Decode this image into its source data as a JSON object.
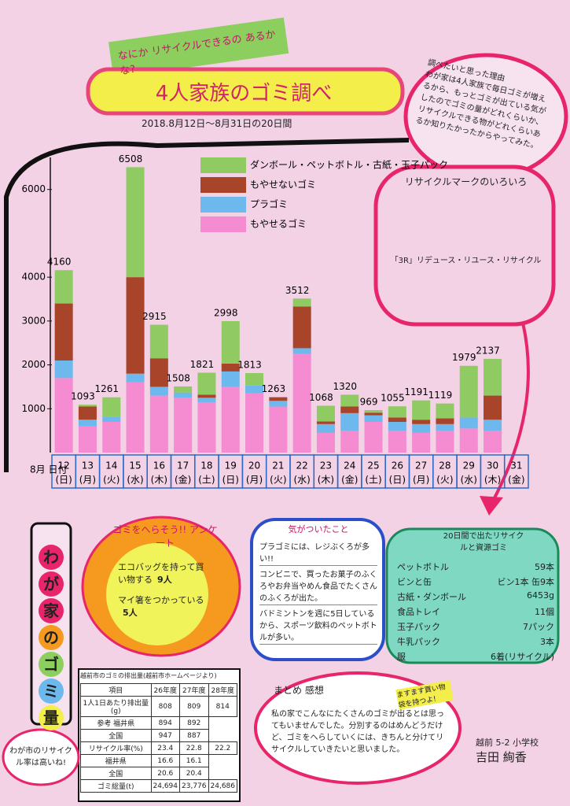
{
  "header": {
    "subtitle": "なにか リサイクルできるの あるかな?",
    "title": "4人家族のゴミ調べ",
    "period": "2018.8月12日〜8月31日の20日間"
  },
  "reason": {
    "heading": "調べたいと思った理由",
    "text": "わが家は4人家族で毎日ゴミが増えるから、もっとゴミが出ている気がしたのでゴミの量がどれくらいか、リサイクルできる物がどれくらいあるか知りたかったからやってみた。"
  },
  "chart_data": {
    "type": "stacked_bar",
    "corner_label": "8月 日付",
    "categories": [
      "12",
      "13",
      "14",
      "15",
      "16",
      "17",
      "18",
      "19",
      "20",
      "21",
      "22",
      "23",
      "24",
      "25",
      "26",
      "27",
      "28",
      "29",
      "30",
      "31"
    ],
    "weekdays": [
      "(日)",
      "(月)",
      "(火)",
      "(水)",
      "(木)",
      "(金)",
      "(土)",
      "(日)",
      "(月)",
      "(火)",
      "(水)",
      "(木)",
      "(金)",
      "(土)",
      "(日)",
      "(月)",
      "(火)",
      "(水)",
      "(木)",
      "(金)"
    ],
    "series": [
      {
        "name": "もやせるゴミ",
        "color": "#f58bd0",
        "values": [
          1700,
          600,
          700,
          1600,
          1300,
          1250,
          1150,
          1500,
          1350,
          1050,
          2250,
          450,
          500,
          700,
          500,
          450,
          500,
          550,
          500,
          null
        ]
      },
      {
        "name": "プラゴミ",
        "color": "#6db8ec",
        "values": [
          400,
          150,
          120,
          200,
          200,
          120,
          100,
          350,
          180,
          130,
          130,
          200,
          400,
          150,
          200,
          200,
          150,
          250,
          250,
          null
        ]
      },
      {
        "name": "もやせないゴミ",
        "color": "#a8442a",
        "values": [
          1300,
          300,
          0,
          2200,
          650,
          0,
          70,
          180,
          0,
          83,
          950,
          60,
          150,
          60,
          100,
          100,
          130,
          0,
          550,
          null
        ]
      },
      {
        "name": "ダンボール・ペットボトル・古紙・玉子パック",
        "color": "#8fcb62",
        "values": [
          760,
          43,
          441,
          2508,
          765,
          138,
          501,
          968,
          283,
          0,
          182,
          358,
          270,
          59,
          255,
          441,
          339,
          1179,
          837,
          null
        ]
      }
    ],
    "totals": [
      4160,
      1093,
      1261,
      6508,
      2915,
      1508,
      1821,
      2998,
      1813,
      1263,
      3512,
      1068,
      1320,
      969,
      1055,
      1191,
      1119,
      1979,
      2137,
      null
    ],
    "ylim": [
      0,
      7000
    ],
    "yticks": [
      1000,
      2000,
      3000,
      4000,
      6000
    ]
  },
  "marks": {
    "heading": "リサイクルマークのいろいろ",
    "caption": "「3R」リデュース・リユース・リサイクル"
  },
  "side_title": [
    "わ",
    "が",
    "家",
    "の",
    "ゴ",
    "ミ",
    "量"
  ],
  "survey": {
    "heading": "ゴミをへらそう!! アンケート",
    "items": [
      {
        "text": "エコバッグを持って買い物する",
        "count": "9人"
      },
      {
        "text": "マイ箸をつかっている",
        "count": "5人"
      }
    ]
  },
  "notice": {
    "heading": "気がついたこと",
    "lines": [
      "プラゴミには、レジぶくろが多い!!",
      "コンビニで、買ったお菓子のふくろやお弁当やめん食品でたくさんのふくろが出た。",
      "バドミントンを週に5日しているから、スポーツ飲料のペットボトルが多い。"
    ]
  },
  "resources": {
    "heading": "20日間で出たリサイクルと資源ゴミ",
    "rows": [
      [
        "ペットボトル",
        "59本"
      ],
      [
        "ビンと缶",
        "ビン1本 缶9本"
      ],
      [
        "古紙・ダンボール",
        "6453g"
      ],
      [
        "食品トレイ",
        "11個"
      ],
      [
        "玉子パック",
        "7パック"
      ],
      [
        "牛乳パック",
        "3本"
      ],
      [
        "服",
        "6着(リサイクル)"
      ]
    ]
  },
  "table": {
    "title": "越前市のゴミの排出量(越前市ホームページより)",
    "header": [
      "項目",
      "26年度",
      "27年度",
      "28年度"
    ],
    "rows": [
      [
        "1人1日あたり排出量(g)",
        "808",
        "809",
        "814"
      ],
      [
        "参考 福井県",
        "894",
        "892"
      ],
      [
        "全国",
        "947",
        "887"
      ],
      [
        "リサイクル率(%)",
        "23.4",
        "22.8",
        "22.2"
      ],
      [
        "福井県",
        "16.6",
        "16.1"
      ],
      [
        "全国",
        "20.6",
        "20.4"
      ],
      [
        "ゴミ総量(t)",
        "24,694",
        "23,776",
        "24,686"
      ]
    ]
  },
  "bubble": "わが市のリサイクル率は高いね!",
  "summary": {
    "heading": "まとめ 感想",
    "note": "ますます買い物袋を持つよ!",
    "text": "私の家でこんなにたくさんのゴミが出るとは思ってもいませんでした。分別するのはめんどうだけど、ゴミをへらしていくには、きちんと分けてリサイクルしていきたいと思いました。"
  },
  "author": {
    "school": "越前 5-2 小学校",
    "name": "吉田 絢香"
  }
}
